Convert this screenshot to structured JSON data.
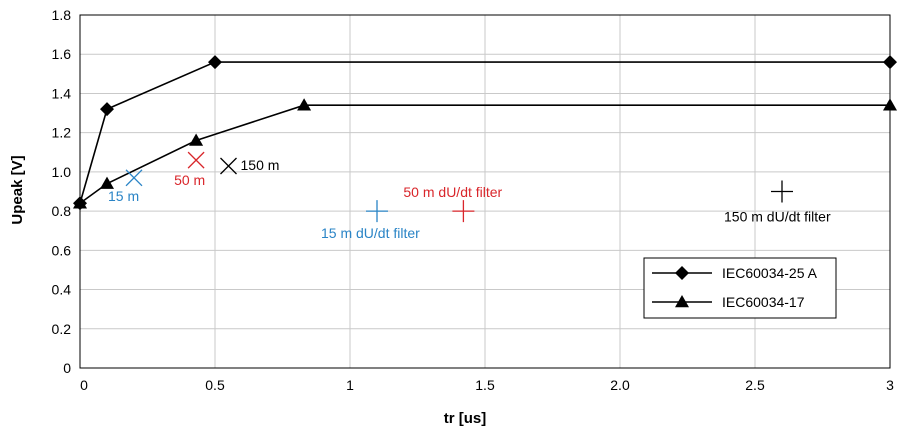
{
  "chart_data": {
    "type": "line",
    "xlabel": "tr [us]",
    "ylabel": "Upeak [V]",
    "xlim": [
      0,
      3
    ],
    "ylim": [
      0,
      1.8
    ],
    "grid": true,
    "legend_position": "bottom-right",
    "x_ticks": [
      {
        "value": 0,
        "label": "0"
      },
      {
        "value": 0.5,
        "label": "0.5"
      },
      {
        "value": 1,
        "label": "1"
      },
      {
        "value": 1.5,
        "label": "1.5"
      },
      {
        "value": 2,
        "label": "2.0"
      },
      {
        "value": 2.5,
        "label": "2.5"
      },
      {
        "value": 3,
        "label": "3"
      }
    ],
    "y_ticks": [
      {
        "value": 0,
        "label": "0"
      },
      {
        "value": 0.2,
        "label": "0.2"
      },
      {
        "value": 0.4,
        "label": "0.4"
      },
      {
        "value": 0.6,
        "label": "0.6"
      },
      {
        "value": 0.8,
        "label": "0.8"
      },
      {
        "value": 1.0,
        "label": "1.0"
      },
      {
        "value": 1.2,
        "label": "1.2"
      },
      {
        "value": 1.4,
        "label": "1.4"
      },
      {
        "value": 1.6,
        "label": "1.6"
      },
      {
        "value": 1.8,
        "label": "1.8"
      }
    ],
    "series": [
      {
        "name": "IEC60034-25 A",
        "marker": "diamond",
        "color": "#000000",
        "points": [
          [
            0,
            0.84
          ],
          [
            0.1,
            1.32
          ],
          [
            0.5,
            1.56
          ],
          [
            3,
            1.56
          ]
        ]
      },
      {
        "name": "IEC60034-17",
        "marker": "triangle",
        "color": "#000000",
        "points": [
          [
            0,
            0.84
          ],
          [
            0.1,
            0.94
          ],
          [
            0.43,
            1.16
          ],
          [
            0.83,
            1.34
          ],
          [
            3,
            1.34
          ]
        ]
      }
    ],
    "measurements": [
      {
        "label": "15 m",
        "x": 0.2,
        "y": 0.97,
        "marker": "x",
        "color": "#2a84c6"
      },
      {
        "label": "50 m",
        "x": 0.43,
        "y": 1.06,
        "marker": "x",
        "color": "#d9262b"
      },
      {
        "label": "150 m",
        "x": 0.55,
        "y": 1.03,
        "marker": "x",
        "color": "#000000"
      },
      {
        "label": "15 m dU/dt filter",
        "x": 1.1,
        "y": 0.8,
        "marker": "plus",
        "color": "#2a84c6"
      },
      {
        "label": "50 m dU/dt filter",
        "x": 1.42,
        "y": 0.8,
        "marker": "plus",
        "color": "#d9262b"
      },
      {
        "label": "150 m dU/dt filter",
        "x": 2.6,
        "y": 0.9,
        "marker": "plus",
        "color": "#000000"
      }
    ],
    "grid_color": "#c9c9c9",
    "text_color": "#000000"
  }
}
